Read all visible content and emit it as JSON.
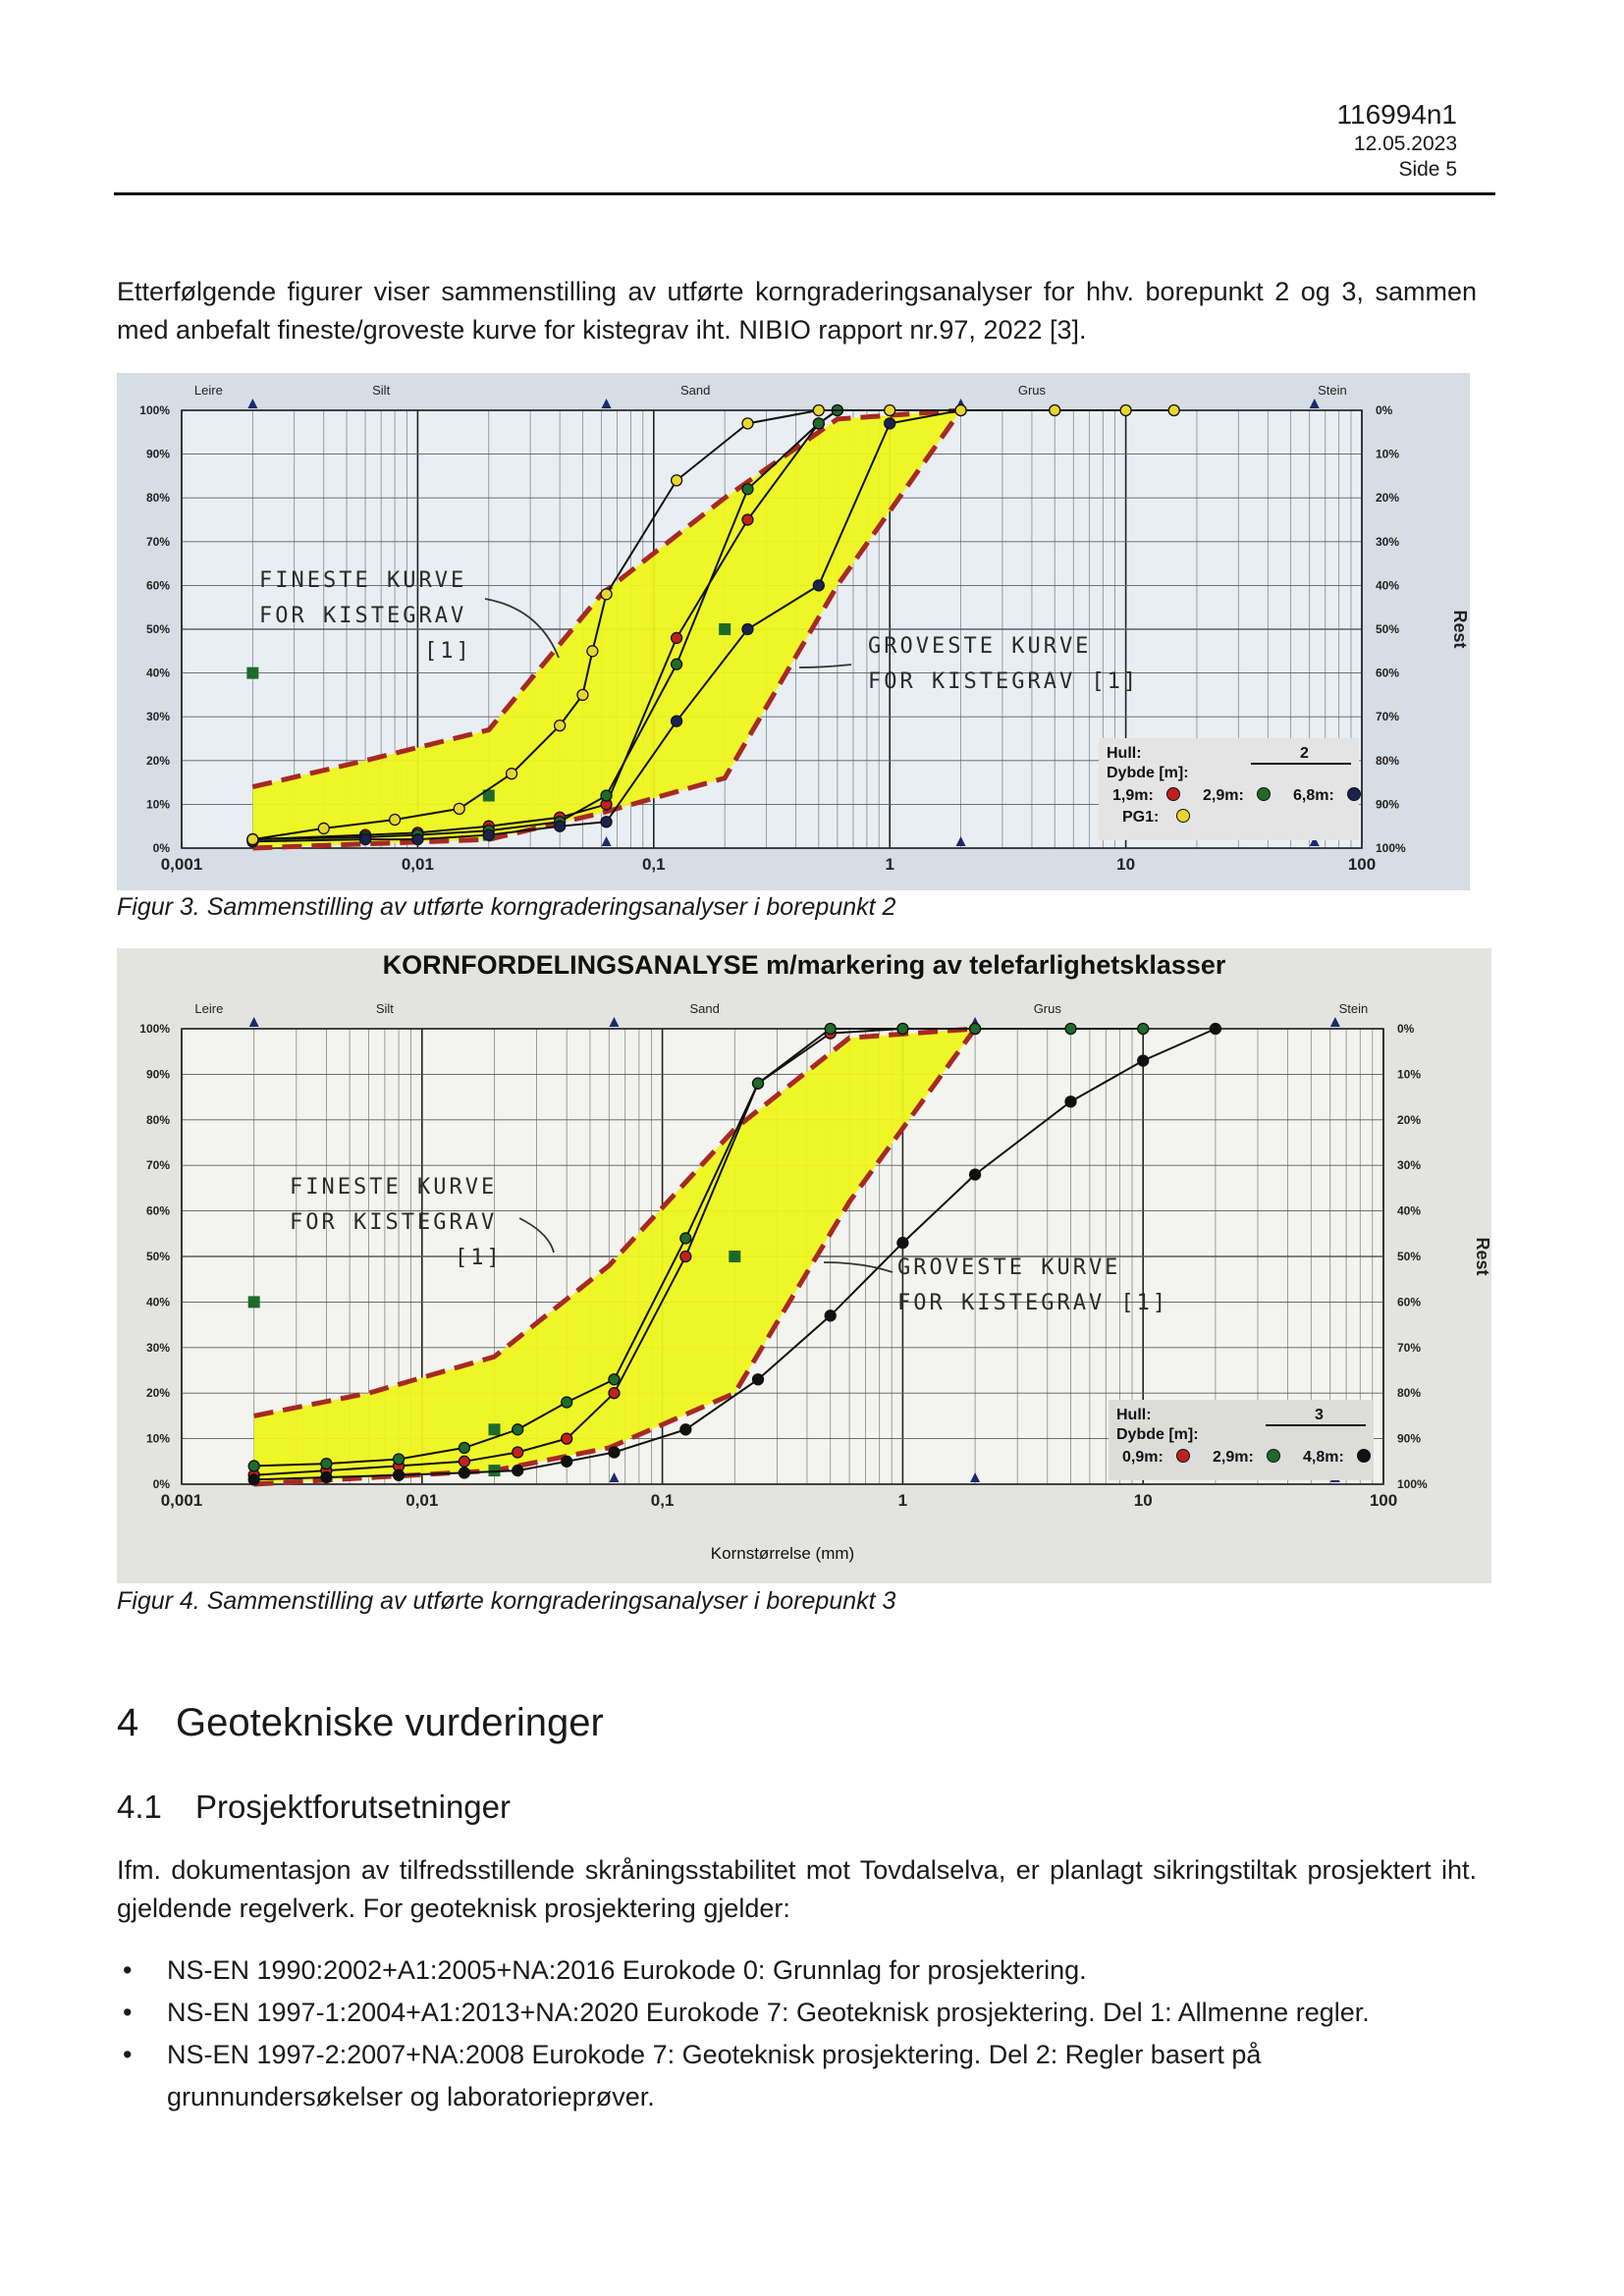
{
  "header": {
    "doc_number": "116994n1",
    "date": "12.05.2023",
    "page": "Side 5"
  },
  "intro_text": "Etterfølgende figurer viser sammenstilling av utførte korngraderingsanalyser for hhv. borepunkt 2 og 3, sammen med anbefalt fineste/groveste kurve for kistegrav iht. NIBIO rapport nr.97, 2022 [3].",
  "figures": [
    {
      "caption": "Figur 3. Sammenstilling av utførte korngraderingsanalyser i borepunkt 2",
      "title": "",
      "xlabel": "",
      "class_labels": [
        "Leire",
        "Silt",
        "Sand",
        "Grus",
        "Stein"
      ],
      "x_ticks": [
        "0,001",
        "0,01",
        "0,1",
        "1",
        "10",
        "100"
      ],
      "y_left_ticks": [
        "0%",
        "10%",
        "20%",
        "30%",
        "40%",
        "50%",
        "60%",
        "70%",
        "80%",
        "90%",
        "100%"
      ],
      "y_right_ticks": [
        "100%",
        "90%",
        "80%",
        "70%",
        "60%",
        "50%",
        "40%",
        "30%",
        "20%",
        "10%",
        "0%"
      ],
      "right_axis_label": "Rest",
      "annotation_finest": [
        "FINESTE KURVE",
        "FOR KISTEGRAV",
        "[1]"
      ],
      "annotation_coarsest": [
        "GROVESTE KURVE",
        "FOR KISTEGRAV [1]"
      ],
      "legend": {
        "hull_label": "Hull:",
        "hull_value": "2",
        "depth_label": "Dybde [m]:",
        "entries": [
          {
            "label": "1,9m:",
            "color": "#c0211c"
          },
          {
            "label": "2,9m:",
            "color": "#1f6b2a"
          },
          {
            "label": "6,8m:",
            "color": "#1b2250"
          },
          {
            "label": "PG1:",
            "color": "#e8d630"
          }
        ]
      }
    },
    {
      "caption": "Figur 4. Sammenstilling av utførte korngraderingsanalyser i borepunkt 3",
      "title": "KORNFORDELINGSANALYSE m/markering av telefarlighetsklasser",
      "xlabel": "Kornstørrelse (mm)",
      "class_labels": [
        "Leire",
        "Silt",
        "Sand",
        "Grus",
        "Stein"
      ],
      "x_ticks": [
        "0,001",
        "0,01",
        "0,1",
        "1",
        "10",
        "100"
      ],
      "y_left_ticks": [
        "0%",
        "10%",
        "20%",
        "30%",
        "40%",
        "50%",
        "60%",
        "70%",
        "80%",
        "90%",
        "100%"
      ],
      "y_right_ticks": [
        "100%",
        "90%",
        "80%",
        "70%",
        "60%",
        "50%",
        "40%",
        "30%",
        "20%",
        "10%",
        "0%"
      ],
      "right_axis_label": "Rest",
      "annotation_finest": [
        "FINESTE KURVE",
        "FOR KISTEGRAV",
        "[1]"
      ],
      "annotation_coarsest": [
        "GROVESTE KURVE",
        "FOR KISTEGRAV [1]"
      ],
      "legend": {
        "hull_label": "Hull:",
        "hull_value": "3",
        "depth_label": "Dybde [m]:",
        "entries": [
          {
            "label": "0,9m:",
            "color": "#c0211c"
          },
          {
            "label": "2,9m:",
            "color": "#1f6b2a"
          },
          {
            "label": "4,8m:",
            "color": "#111111"
          }
        ]
      }
    }
  ],
  "chart_data": [
    {
      "type": "line",
      "x_scale": "log",
      "x_unit": "mm",
      "xlim": [
        0.001,
        100
      ],
      "ylim": [
        0,
        100
      ],
      "envelope_finest": {
        "x": [
          0.002,
          0.006,
          0.02,
          0.06,
          0.2,
          0.6,
          2
        ],
        "y": [
          14,
          20,
          27,
          58,
          80,
          98,
          100
        ]
      },
      "envelope_coarsest": {
        "x": [
          0.002,
          0.02,
          0.06,
          0.2,
          0.6,
          2
        ],
        "y": [
          0,
          2,
          8,
          16,
          60,
          100
        ]
      },
      "series": [
        {
          "name": "1,9m",
          "x": [
            0.002,
            0.006,
            0.01,
            0.02,
            0.04,
            0.063,
            0.125,
            0.25,
            0.5,
            0.6
          ],
          "y": [
            2,
            3,
            3.5,
            5,
            7,
            10,
            48,
            75,
            97,
            100
          ]
        },
        {
          "name": "2,9m",
          "x": [
            0.002,
            0.006,
            0.01,
            0.02,
            0.04,
            0.063,
            0.125,
            0.25,
            0.5,
            0.6
          ],
          "y": [
            2,
            2.5,
            3,
            4,
            6,
            12,
            42,
            82,
            97,
            100
          ]
        },
        {
          "name": "6,8m",
          "x": [
            0.002,
            0.006,
            0.01,
            0.02,
            0.04,
            0.063,
            0.125,
            0.25,
            0.5,
            1,
            2
          ],
          "y": [
            1.5,
            2,
            2,
            3,
            5,
            6,
            29,
            50,
            60,
            97,
            100
          ]
        },
        {
          "name": "PG1",
          "x": [
            0.002,
            0.004,
            0.008,
            0.015,
            0.025,
            0.04,
            0.05,
            0.055,
            0.063,
            0.125,
            0.25,
            0.5,
            1,
            2,
            5,
            10,
            16
          ],
          "y": [
            2,
            4.5,
            6.5,
            9,
            17,
            28,
            35,
            45,
            58,
            84,
            97,
            100,
            100,
            100,
            100,
            100,
            100
          ]
        }
      ],
      "markers": [
        {
          "x": 0.002,
          "y": 40,
          "marker": "square"
        },
        {
          "x": 0.02,
          "y": 12,
          "marker": "square"
        },
        {
          "x": 0.2,
          "y": 50,
          "marker": "square"
        },
        {
          "x": 0.02,
          "y": 3,
          "marker": "square"
        }
      ]
    },
    {
      "type": "line",
      "x_scale": "log",
      "x_unit": "mm",
      "xlim": [
        0.001,
        100
      ],
      "ylim": [
        0,
        100
      ],
      "envelope_finest": {
        "x": [
          0.002,
          0.006,
          0.02,
          0.06,
          0.2,
          0.6,
          2
        ],
        "y": [
          15,
          20,
          28,
          48,
          78,
          98,
          100
        ]
      },
      "envelope_coarsest": {
        "x": [
          0.002,
          0.02,
          0.06,
          0.2,
          0.6,
          2
        ],
        "y": [
          0,
          3,
          8,
          20,
          62,
          100
        ]
      },
      "series": [
        {
          "name": "0,9m",
          "x": [
            0.002,
            0.004,
            0.008,
            0.015,
            0.025,
            0.04,
            0.063,
            0.125,
            0.25,
            0.5,
            1,
            2
          ],
          "y": [
            2,
            3,
            4,
            5,
            7,
            10,
            20,
            50,
            88,
            99,
            100,
            100
          ]
        },
        {
          "name": "2,9m",
          "x": [
            0.002,
            0.004,
            0.008,
            0.015,
            0.025,
            0.04,
            0.063,
            0.125,
            0.25,
            0.5,
            1,
            2,
            5,
            10
          ],
          "y": [
            4,
            4.5,
            5.5,
            8,
            12,
            18,
            23,
            54,
            88,
            100,
            100,
            100,
            100,
            100
          ]
        },
        {
          "name": "4,8m",
          "x": [
            0.002,
            0.004,
            0.008,
            0.015,
            0.025,
            0.04,
            0.063,
            0.125,
            0.25,
            0.5,
            1,
            2,
            5,
            10,
            20
          ],
          "y": [
            1,
            1.5,
            2,
            2.5,
            3,
            5,
            7,
            12,
            23,
            37,
            53,
            68,
            84,
            93,
            100
          ]
        }
      ],
      "markers": [
        {
          "x": 0.002,
          "y": 40,
          "marker": "square"
        },
        {
          "x": 0.02,
          "y": 12,
          "marker": "square"
        },
        {
          "x": 0.2,
          "y": 50,
          "marker": "square"
        },
        {
          "x": 0.02,
          "y": 3,
          "marker": "square"
        }
      ]
    }
  ],
  "section": {
    "number": "4",
    "title": "Geotekniske vurderinger"
  },
  "subsection": {
    "number": "4.1",
    "title": "Prosjektforutsetninger"
  },
  "body_text": "Ifm. dokumentasjon av tilfredsstillende skråningsstabilitet mot Tovdalselva, er planlagt sikringstiltak prosjektert iht. gjeldende regelverk. For geoteknisk prosjektering gjelder:",
  "bullets": [
    "NS-EN 1990:2002+A1:2005+NA:2016 Eurokode 0: Grunnlag for prosjektering.",
    "NS-EN 1997-1:2004+A1:2013+NA:2020 Eurokode 7: Geoteknisk prosjektering. Del 1: Allmenne regler.",
    "NS-EN 1997-2:2007+NA:2008 Eurokode 7: Geoteknisk prosjektering. Del 2: Regler basert på grunnundersøkelser og laboratorieprøver."
  ],
  "colors": {
    "envelope_fill": "#eef51c",
    "envelope_line": "#a62a22",
    "grid": "#4a4a4a"
  }
}
